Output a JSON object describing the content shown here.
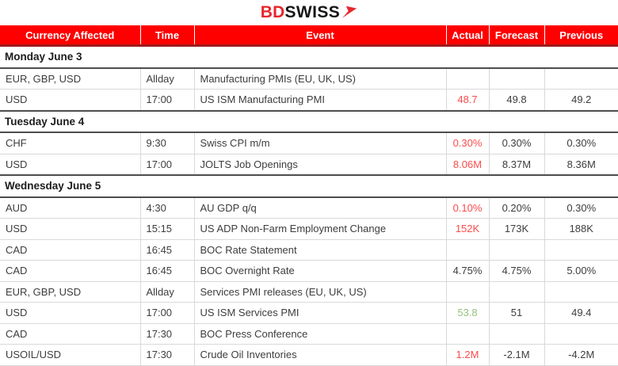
{
  "logo": {
    "bd": "BD",
    "swiss": "SWISS",
    "arrow_icon": "red-arrow-icon"
  },
  "colors": {
    "header_bg": "#fe0000",
    "header_border": "#9e1b1b",
    "logo_red": "#e8262d",
    "negative_red": "#fb4b4b",
    "positive_green": "#93c47d"
  },
  "table": {
    "headers": [
      "Currency Affected",
      "Time",
      "Event",
      "Actual",
      "Forecast",
      "Previous"
    ],
    "sections": [
      {
        "title": "Monday June 3",
        "rows": [
          {
            "currency": "EUR, GBP, USD",
            "time": "Allday",
            "event": "Manufacturing PMIs (EU, UK, US)",
            "actual": "",
            "forecast": "",
            "previous": ""
          },
          {
            "currency": "USD",
            "time": "17:00",
            "event": "US ISM Manufacturing PMI",
            "actual": "48.7",
            "actual_color": "red",
            "forecast": "49.8",
            "previous": "49.2"
          }
        ]
      },
      {
        "title": "Tuesday June 4",
        "rows": [
          {
            "currency": "CHF",
            "time": "9:30",
            "event": "Swiss CPI m/m",
            "actual": "0.30%",
            "actual_color": "red",
            "forecast": "0.30%",
            "previous": "0.30%"
          },
          {
            "currency": "USD",
            "time": "17:00",
            "event": "JOLTS Job Openings",
            "actual": "8.06M",
            "actual_color": "red",
            "forecast": "8.37M",
            "previous": "8.36M"
          }
        ]
      },
      {
        "title": "Wednesday June 5",
        "rows": [
          {
            "currency": "AUD",
            "time": "4:30",
            "event": "AU GDP q/q",
            "actual": "0.10%",
            "actual_color": "red",
            "forecast": "0.20%",
            "previous": "0.30%"
          },
          {
            "currency": "USD",
            "time": "15:15",
            "event": "US ADP Non-Farm Employment Change",
            "actual": "152K",
            "actual_color": "red",
            "forecast": "173K",
            "previous": "188K"
          },
          {
            "currency": "CAD",
            "time": "16:45",
            "event": "BOC Rate Statement",
            "actual": "",
            "forecast": "",
            "previous": ""
          },
          {
            "currency": "CAD",
            "time": "16:45",
            "event": "BOC Overnight Rate",
            "actual": "4.75%",
            "forecast": "4.75%",
            "previous": "5.00%"
          },
          {
            "currency": "EUR, GBP, USD",
            "time": "Allday",
            "event": "Services PMI releases  (EU, UK, US)",
            "actual": "",
            "forecast": "",
            "previous": ""
          },
          {
            "currency": "USD",
            "time": "17:00",
            "event": "US ISM Services PMI",
            "actual": "53.8",
            "actual_color": "green",
            "forecast": "51",
            "previous": "49.4"
          },
          {
            "currency": "CAD",
            "time": "17:30",
            "event": "BOC Press Conference",
            "actual": "",
            "forecast": "",
            "previous": ""
          },
          {
            "currency": "USOIL/USD",
            "time": "17:30",
            "event": "Crude Oil Inventories",
            "actual": "1.2M",
            "actual_color": "red",
            "forecast": "-2.1M",
            "previous": "-4.2M"
          }
        ]
      }
    ]
  }
}
